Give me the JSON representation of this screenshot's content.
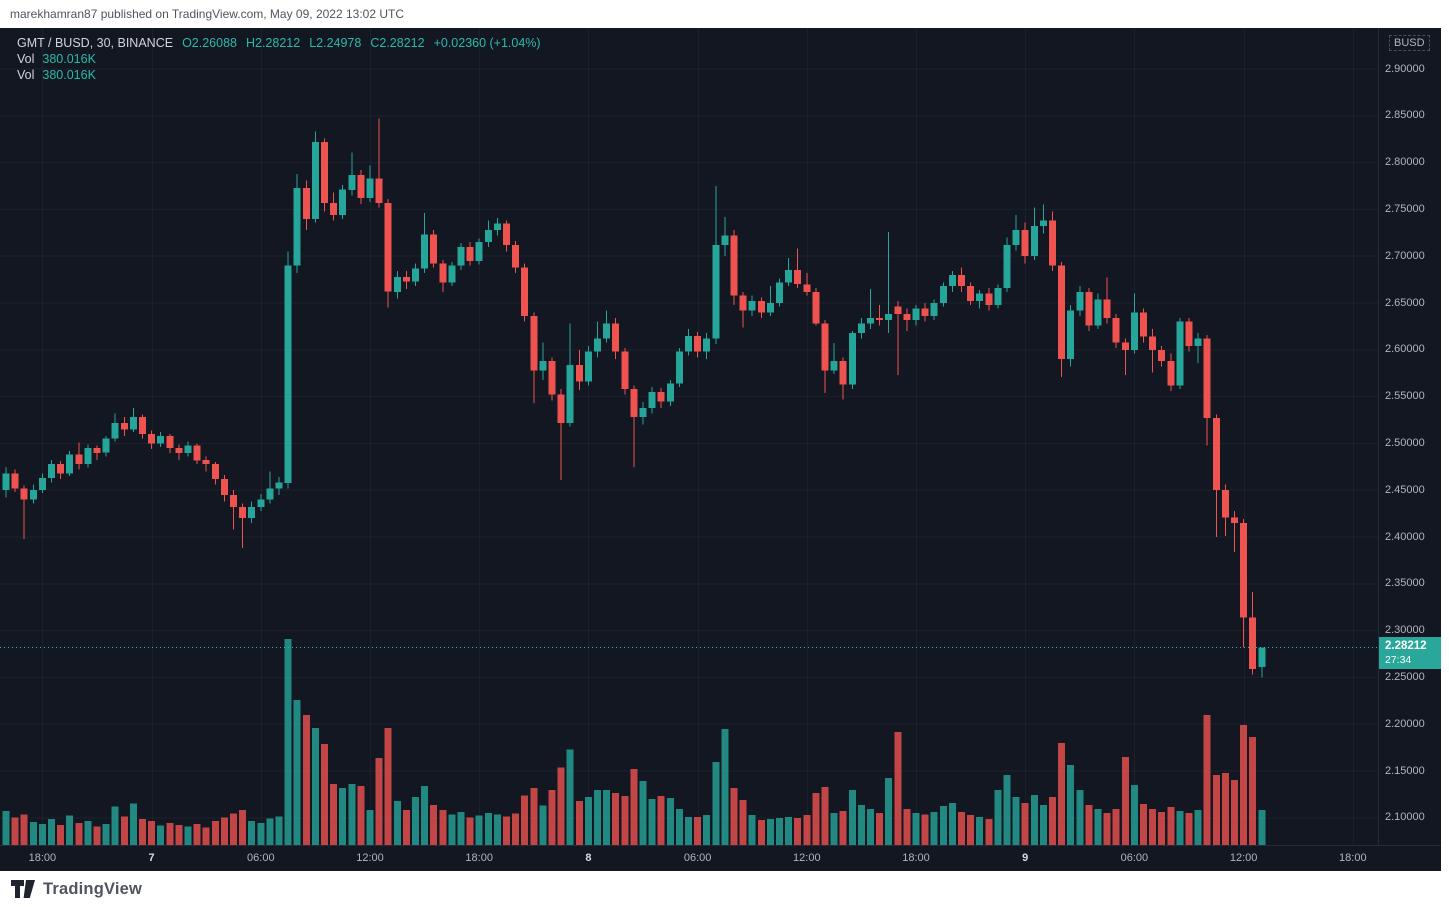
{
  "page": {
    "top_note": "marekhamran87 published on TradingView.com, May 09, 2022 13:02 UTC"
  },
  "chart": {
    "background": "#131722",
    "up_color": "#26a69a",
    "down_color": "#ef5350",
    "grid_color": "rgba(255,255,255,0.04)",
    "axis_text_color": "#b2b5be",
    "legend": {
      "title": "GMT / BUSD, 30, BINANCE",
      "open": "O2.26088",
      "high": "H2.28212",
      "low": "L2.24978",
      "close": "C2.28212",
      "change": "+0.02360 (+1.04%)",
      "vol_rows": [
        {
          "label": "Vol",
          "value": "380.016K"
        },
        {
          "label": "Vol",
          "value": "380.016K"
        }
      ]
    },
    "price_axis": {
      "currency": "BUSD",
      "ticks": [
        "2.90000",
        "2.85000",
        "2.80000",
        "2.75000",
        "2.70000",
        "2.65000",
        "2.60000",
        "2.55000",
        "2.50000",
        "2.45000",
        "2.40000",
        "2.35000",
        "2.30000",
        "2.25000",
        "2.20000",
        "2.15000",
        "2.10000"
      ]
    },
    "time_axis": [
      {
        "i": 4,
        "t": "18:00",
        "day": false
      },
      {
        "i": 16,
        "t": "7",
        "day": true
      },
      {
        "i": 28,
        "t": "06:00",
        "day": false
      },
      {
        "i": 40,
        "t": "12:00",
        "day": false
      },
      {
        "i": 52,
        "t": "18:00",
        "day": false
      },
      {
        "i": 64,
        "t": "8",
        "day": true
      },
      {
        "i": 76,
        "t": "06:00",
        "day": false
      },
      {
        "i": 88,
        "t": "12:00",
        "day": false
      },
      {
        "i": 100,
        "t": "18:00",
        "day": false
      },
      {
        "i": 112,
        "t": "9",
        "day": true
      },
      {
        "i": 124,
        "t": "06:00",
        "day": false
      },
      {
        "i": 136,
        "t": "12:00",
        "day": false
      },
      {
        "i": 148,
        "t": "18:00",
        "day": false
      }
    ],
    "current_price": {
      "value": "2.28212",
      "countdown": "27:34",
      "price": 2.28212
    }
  },
  "chart_data": {
    "type": "candlestick+volume",
    "symbol": "GMT / BUSD",
    "interval": "30",
    "exchange": "BINANCE",
    "quote_currency": "BUSD",
    "start_time": "2022-05-06 16:00 UTC",
    "interval_minutes": 30,
    "visible_price_range": [
      2.1,
      2.9
    ],
    "last": {
      "open": 2.26088,
      "high": 2.28212,
      "low": 2.24978,
      "close": 2.28212,
      "change": 0.0236,
      "change_pct": 1.04,
      "volume": "380.016K"
    },
    "volume_unit": "K",
    "columns": [
      "open",
      "high",
      "low",
      "close",
      "volume_K"
    ],
    "candles": [
      [
        2.45,
        2.475,
        2.442,
        2.468,
        370
      ],
      [
        2.468,
        2.472,
        2.448,
        2.452,
        300
      ],
      [
        2.452,
        2.455,
        2.398,
        2.44,
        330
      ],
      [
        2.44,
        2.456,
        2.436,
        2.45,
        250
      ],
      [
        2.45,
        2.468,
        2.447,
        2.463,
        230
      ],
      [
        2.463,
        2.482,
        2.458,
        2.478,
        280
      ],
      [
        2.478,
        2.481,
        2.462,
        2.468,
        220
      ],
      [
        2.468,
        2.492,
        2.465,
        2.488,
        320
      ],
      [
        2.488,
        2.501,
        2.472,
        2.478,
        240
      ],
      [
        2.478,
        2.499,
        2.474,
        2.495,
        260
      ],
      [
        2.495,
        2.498,
        2.482,
        2.49,
        200
      ],
      [
        2.49,
        2.508,
        2.486,
        2.505,
        230
      ],
      [
        2.505,
        2.532,
        2.502,
        2.522,
        420
      ],
      [
        2.522,
        2.528,
        2.508,
        2.515,
        310
      ],
      [
        2.515,
        2.538,
        2.512,
        2.528,
        450
      ],
      [
        2.528,
        2.531,
        2.505,
        2.51,
        280
      ],
      [
        2.51,
        2.514,
        2.494,
        2.5,
        260
      ],
      [
        2.5,
        2.512,
        2.496,
        2.508,
        210
      ],
      [
        2.508,
        2.51,
        2.49,
        2.495,
        240
      ],
      [
        2.495,
        2.499,
        2.482,
        2.49,
        220
      ],
      [
        2.49,
        2.502,
        2.486,
        2.498,
        200
      ],
      [
        2.498,
        2.5,
        2.478,
        2.482,
        230
      ],
      [
        2.482,
        2.486,
        2.47,
        2.478,
        190
      ],
      [
        2.478,
        2.48,
        2.456,
        2.462,
        260
      ],
      [
        2.462,
        2.466,
        2.438,
        2.445,
        300
      ],
      [
        2.445,
        2.45,
        2.408,
        2.432,
        340
      ],
      [
        2.432,
        2.436,
        2.388,
        2.42,
        380
      ],
      [
        2.42,
        2.438,
        2.415,
        2.432,
        260
      ],
      [
        2.432,
        2.446,
        2.428,
        2.44,
        240
      ],
      [
        2.44,
        2.47,
        2.436,
        2.452,
        290
      ],
      [
        2.452,
        2.464,
        2.445,
        2.458,
        310
      ],
      [
        2.458,
        2.705,
        2.452,
        2.69,
        2240
      ],
      [
        2.69,
        2.788,
        2.682,
        2.773,
        1576
      ],
      [
        2.773,
        2.781,
        2.728,
        2.74,
        1413
      ],
      [
        2.74,
        2.833,
        2.736,
        2.822,
        1272
      ],
      [
        2.822,
        2.826,
        2.748,
        2.757,
        1098
      ],
      [
        2.757,
        2.768,
        2.738,
        2.744,
        663
      ],
      [
        2.744,
        2.776,
        2.74,
        2.771,
        620
      ],
      [
        2.771,
        2.811,
        2.765,
        2.787,
        663
      ],
      [
        2.787,
        2.792,
        2.756,
        2.762,
        641
      ],
      [
        2.762,
        2.797,
        2.758,
        2.783,
        380
      ],
      [
        2.783,
        2.847,
        2.752,
        2.757,
        946
      ],
      [
        2.757,
        2.761,
        2.645,
        2.662,
        1272
      ],
      [
        2.662,
        2.684,
        2.655,
        2.678,
        478
      ],
      [
        2.678,
        2.684,
        2.665,
        2.673,
        380
      ],
      [
        2.673,
        2.692,
        2.668,
        2.687,
        522
      ],
      [
        2.687,
        2.746,
        2.682,
        2.723,
        641
      ],
      [
        2.723,
        2.728,
        2.688,
        2.692,
        435
      ],
      [
        2.692,
        2.696,
        2.662,
        2.672,
        380
      ],
      [
        2.672,
        2.694,
        2.668,
        2.69,
        330
      ],
      [
        2.69,
        2.714,
        2.685,
        2.71,
        360
      ],
      [
        2.71,
        2.715,
        2.69,
        2.695,
        300
      ],
      [
        2.695,
        2.719,
        2.691,
        2.715,
        320
      ],
      [
        2.715,
        2.738,
        2.71,
        2.728,
        350
      ],
      [
        2.728,
        2.741,
        2.722,
        2.735,
        330
      ],
      [
        2.735,
        2.738,
        2.705,
        2.712,
        310
      ],
      [
        2.712,
        2.716,
        2.682,
        2.688,
        340
      ],
      [
        2.688,
        2.692,
        2.63,
        2.636,
        540
      ],
      [
        2.636,
        2.64,
        2.543,
        2.578,
        620
      ],
      [
        2.578,
        2.608,
        2.568,
        2.588,
        430
      ],
      [
        2.588,
        2.592,
        2.546,
        2.552,
        600
      ],
      [
        2.552,
        2.558,
        2.461,
        2.522,
        840
      ],
      [
        2.522,
        2.628,
        2.518,
        2.584,
        1040
      ],
      [
        2.584,
        2.6,
        2.557,
        2.566,
        480
      ],
      [
        2.566,
        2.604,
        2.562,
        2.598,
        520
      ],
      [
        2.598,
        2.63,
        2.592,
        2.612,
        600
      ],
      [
        2.612,
        2.642,
        2.608,
        2.628,
        598
      ],
      [
        2.628,
        2.634,
        2.59,
        2.598,
        565
      ],
      [
        2.598,
        2.602,
        2.552,
        2.558,
        532
      ],
      [
        2.558,
        2.562,
        2.475,
        2.528,
        826
      ],
      [
        2.528,
        2.544,
        2.52,
        2.538,
        696
      ],
      [
        2.538,
        2.56,
        2.532,
        2.555,
        500
      ],
      [
        2.555,
        2.559,
        2.538,
        2.545,
        533
      ],
      [
        2.545,
        2.568,
        2.54,
        2.564,
        511
      ],
      [
        2.564,
        2.602,
        2.56,
        2.598,
        391
      ],
      [
        2.598,
        2.622,
        2.594,
        2.615,
        304
      ],
      [
        2.615,
        2.619,
        2.592,
        2.598,
        304
      ],
      [
        2.598,
        2.618,
        2.59,
        2.612,
        326
      ],
      [
        2.612,
        2.775,
        2.606,
        2.712,
        902
      ],
      [
        2.712,
        2.742,
        2.7,
        2.722,
        1260
      ],
      [
        2.722,
        2.728,
        2.648,
        2.658,
        620
      ],
      [
        2.658,
        2.662,
        2.624,
        2.642,
        489
      ],
      [
        2.642,
        2.658,
        2.636,
        2.652,
        326
      ],
      [
        2.652,
        2.656,
        2.634,
        2.64,
        272
      ],
      [
        2.64,
        2.668,
        2.636,
        2.65,
        283
      ],
      [
        2.65,
        2.676,
        2.646,
        2.672,
        293
      ],
      [
        2.672,
        2.698,
        2.668,
        2.685,
        304
      ],
      [
        2.685,
        2.708,
        2.666,
        2.67,
        293
      ],
      [
        2.67,
        2.682,
        2.658,
        2.662,
        326
      ],
      [
        2.662,
        2.666,
        2.626,
        2.628,
        565
      ],
      [
        2.628,
        2.632,
        2.554,
        2.578,
        630
      ],
      [
        2.578,
        2.607,
        2.574,
        2.588,
        348
      ],
      [
        2.588,
        2.592,
        2.547,
        2.563,
        370
      ],
      [
        2.563,
        2.62,
        2.558,
        2.618,
        598
      ],
      [
        2.618,
        2.634,
        2.612,
        2.628,
        435
      ],
      [
        2.628,
        2.665,
        2.622,
        2.634,
        391
      ],
      [
        2.634,
        2.648,
        2.626,
        2.632,
        348
      ],
      [
        2.632,
        2.726,
        2.618,
        2.638,
        728
      ],
      [
        2.646,
        2.652,
        2.573,
        2.638,
        1228
      ],
      [
        2.638,
        2.644,
        2.62,
        2.632,
        391
      ],
      [
        2.632,
        2.648,
        2.626,
        2.644,
        348
      ],
      [
        2.644,
        2.65,
        2.63,
        2.636,
        330
      ],
      [
        2.636,
        2.654,
        2.632,
        2.65,
        359
      ],
      [
        2.65,
        2.672,
        2.646,
        2.668,
        424
      ],
      [
        2.668,
        2.684,
        2.662,
        2.68,
        457
      ],
      [
        2.68,
        2.688,
        2.662,
        2.668,
        359
      ],
      [
        2.668,
        2.672,
        2.648,
        2.652,
        326
      ],
      [
        2.652,
        2.664,
        2.644,
        2.66,
        304
      ],
      [
        2.66,
        2.666,
        2.642,
        2.648,
        283
      ],
      [
        2.648,
        2.67,
        2.644,
        2.666,
        598
      ],
      [
        2.666,
        2.72,
        2.662,
        2.712,
        760
      ],
      [
        2.712,
        2.744,
        2.706,
        2.728,
        522
      ],
      [
        2.728,
        2.736,
        2.692,
        2.7,
        457
      ],
      [
        2.7,
        2.752,
        2.696,
        2.732,
        544
      ],
      [
        2.732,
        2.755,
        2.724,
        2.738,
        435
      ],
      [
        2.738,
        2.748,
        2.684,
        2.69,
        522
      ],
      [
        2.69,
        2.694,
        2.571,
        2.59,
        1108
      ],
      [
        2.59,
        2.648,
        2.582,
        2.642,
        870
      ],
      [
        2.642,
        2.668,
        2.636,
        2.662,
        598
      ],
      [
        2.662,
        2.666,
        2.62,
        2.626,
        435
      ],
      [
        2.626,
        2.66,
        2.622,
        2.654,
        391
      ],
      [
        2.654,
        2.677,
        2.628,
        2.634,
        348
      ],
      [
        2.634,
        2.638,
        2.602,
        2.608,
        391
      ],
      [
        2.608,
        2.612,
        2.573,
        2.6,
        956
      ],
      [
        2.6,
        2.66,
        2.596,
        2.64,
        652
      ],
      [
        2.64,
        2.644,
        2.608,
        2.614,
        446
      ],
      [
        2.614,
        2.622,
        2.576,
        2.6,
        391
      ],
      [
        2.6,
        2.604,
        2.582,
        2.588,
        359
      ],
      [
        2.588,
        2.596,
        2.556,
        2.562,
        413
      ],
      [
        2.562,
        2.634,
        2.558,
        2.63,
        370
      ],
      [
        2.63,
        2.634,
        2.598,
        2.604,
        348
      ],
      [
        2.604,
        2.618,
        2.586,
        2.612,
        380
      ],
      [
        2.612,
        2.616,
        2.498,
        2.527,
        1413
      ],
      [
        2.527,
        2.531,
        2.4,
        2.45,
        760
      ],
      [
        2.45,
        2.456,
        2.401,
        2.421,
        782
      ],
      [
        2.421,
        2.428,
        2.384,
        2.415,
        706
      ],
      [
        2.415,
        2.419,
        2.282,
        2.314,
        1304
      ],
      [
        2.314,
        2.341,
        2.253,
        2.259,
        1174
      ],
      [
        2.26088,
        2.28212,
        2.24978,
        2.28212,
        380.016
      ]
    ]
  },
  "footer": {
    "logo_text": "TradingView"
  }
}
